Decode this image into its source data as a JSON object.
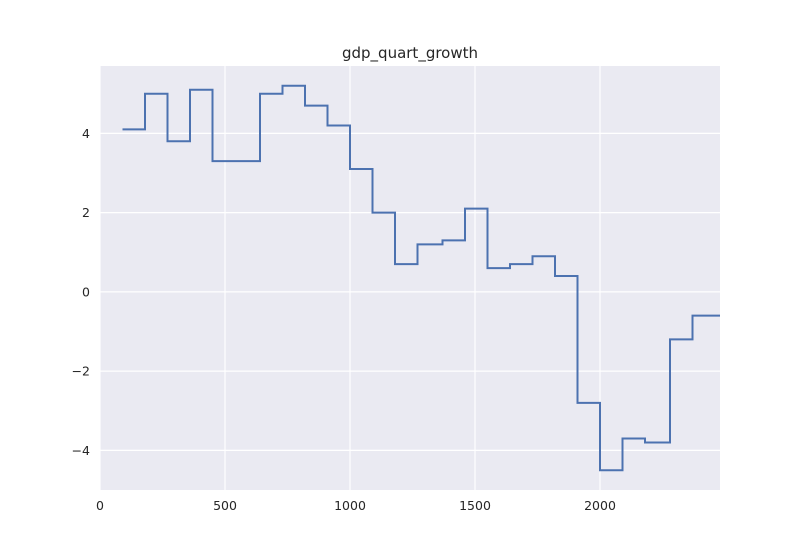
{
  "chart_data": {
    "type": "line",
    "title": "gdp_quart_growth",
    "xlabel": "",
    "ylabel": "",
    "xlim": [
      0,
      2480
    ],
    "ylim": [
      -5.0,
      5.7
    ],
    "x_ticks": [
      0,
      500,
      1000,
      1500,
      2000
    ],
    "x_tick_labels": [
      "0",
      "500",
      "1000",
      "1500",
      "2000"
    ],
    "y_ticks": [
      -4,
      -2,
      0,
      2,
      4
    ],
    "y_tick_labels": [
      "−4",
      "−2",
      "0",
      "2",
      "4"
    ],
    "grid": true,
    "step": "post",
    "series": [
      {
        "color": "#4c72b0",
        "x": [
          90,
          180,
          270,
          360,
          450,
          540,
          640,
          730,
          820,
          910,
          1000,
          1090,
          1180,
          1270,
          1370,
          1460,
          1550,
          1640,
          1730,
          1820,
          1910,
          2000,
          2090,
          2180,
          2280,
          2370,
          2480
        ],
        "values": [
          4.1,
          5.0,
          3.8,
          5.1,
          3.3,
          3.3,
          5.0,
          5.2,
          4.7,
          4.2,
          3.1,
          2.0,
          0.7,
          1.2,
          1.3,
          2.1,
          0.6,
          0.7,
          0.9,
          0.4,
          -2.8,
          -4.5,
          -3.7,
          -3.8,
          -1.2,
          -0.6,
          -0.6
        ]
      }
    ]
  }
}
